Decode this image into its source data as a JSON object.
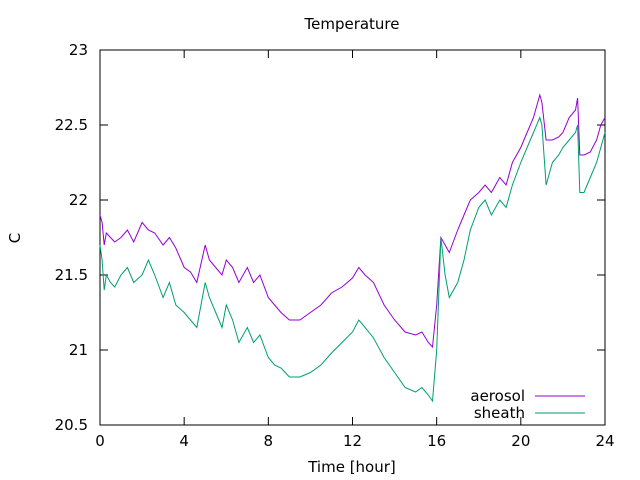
{
  "chart_data": {
    "type": "line",
    "title": "Temperature",
    "xlabel": "Time [hour]",
    "ylabel": "C",
    "xlim": [
      0,
      24
    ],
    "ylim": [
      20.5,
      23
    ],
    "xticks": [
      0,
      4,
      8,
      12,
      16,
      20,
      24
    ],
    "yticks": [
      20.5,
      21,
      21.5,
      22,
      22.5,
      23
    ],
    "ytick_labels": [
      "20.5",
      "21",
      "21.5",
      "22",
      "22.5",
      "23"
    ],
    "grid": false,
    "legend_position": "bottom-right",
    "series": [
      {
        "name": "aerosol",
        "color": "#9400d3",
        "x": [
          0,
          0.1,
          0.2,
          0.3,
          0.5,
          0.7,
          1,
          1.3,
          1.6,
          2,
          2.3,
          2.6,
          3,
          3.3,
          3.6,
          4,
          4.3,
          4.6,
          5,
          5.2,
          5.5,
          5.8,
          6,
          6.3,
          6.6,
          7,
          7.3,
          7.6,
          8,
          8.3,
          8.6,
          9,
          9.5,
          10,
          10.5,
          11,
          11.5,
          12,
          12.3,
          12.6,
          13,
          13.5,
          14,
          14.5,
          15,
          15.3,
          15.6,
          15.8,
          16,
          16.2,
          16.4,
          16.6,
          17,
          17.3,
          17.6,
          18,
          18.3,
          18.6,
          19,
          19.3,
          19.6,
          20,
          20.3,
          20.6,
          20.9,
          21,
          21.2,
          21.5,
          21.8,
          22,
          22.3,
          22.6,
          22.7,
          22.8,
          23,
          23.3,
          23.6,
          23.8,
          24
        ],
        "y": [
          21.9,
          21.85,
          21.7,
          21.78,
          21.75,
          21.72,
          21.75,
          21.8,
          21.72,
          21.85,
          21.8,
          21.78,
          21.7,
          21.75,
          21.68,
          21.55,
          21.52,
          21.45,
          21.7,
          21.6,
          21.55,
          21.5,
          21.6,
          21.55,
          21.45,
          21.55,
          21.45,
          21.5,
          21.35,
          21.3,
          21.25,
          21.2,
          21.2,
          21.25,
          21.3,
          21.38,
          21.42,
          21.48,
          21.55,
          21.5,
          21.45,
          21.3,
          21.2,
          21.12,
          21.1,
          21.12,
          21.05,
          21.02,
          21.3,
          21.75,
          21.7,
          21.65,
          21.8,
          21.9,
          22.0,
          22.05,
          22.1,
          22.05,
          22.15,
          22.1,
          22.25,
          22.35,
          22.45,
          22.55,
          22.7,
          22.65,
          22.4,
          22.4,
          22.42,
          22.45,
          22.55,
          22.6,
          22.68,
          22.3,
          22.3,
          22.32,
          22.4,
          22.5,
          22.55
        ]
      },
      {
        "name": "sheath",
        "color": "#009e73",
        "x": [
          0,
          0.1,
          0.2,
          0.3,
          0.5,
          0.7,
          1,
          1.3,
          1.6,
          2,
          2.3,
          2.6,
          3,
          3.3,
          3.6,
          4,
          4.3,
          4.6,
          5,
          5.2,
          5.5,
          5.8,
          6,
          6.3,
          6.6,
          7,
          7.3,
          7.6,
          8,
          8.3,
          8.6,
          9,
          9.5,
          10,
          10.5,
          11,
          11.5,
          12,
          12.3,
          12.6,
          13,
          13.5,
          14,
          14.5,
          15,
          15.3,
          15.6,
          15.8,
          16,
          16.2,
          16.4,
          16.6,
          17,
          17.3,
          17.6,
          18,
          18.3,
          18.6,
          19,
          19.3,
          19.6,
          20,
          20.3,
          20.6,
          20.9,
          21,
          21.2,
          21.5,
          21.8,
          22,
          22.3,
          22.6,
          22.7,
          22.8,
          23,
          23.3,
          23.6,
          23.8,
          24
        ],
        "y": [
          21.7,
          21.6,
          21.4,
          21.5,
          21.45,
          21.42,
          21.5,
          21.55,
          21.45,
          21.5,
          21.6,
          21.5,
          21.35,
          21.45,
          21.3,
          21.25,
          21.2,
          21.15,
          21.45,
          21.35,
          21.25,
          21.15,
          21.3,
          21.2,
          21.05,
          21.15,
          21.05,
          21.1,
          20.95,
          20.9,
          20.88,
          20.82,
          20.82,
          20.85,
          20.9,
          20.98,
          21.05,
          21.12,
          21.2,
          21.15,
          21.08,
          20.95,
          20.85,
          20.75,
          20.72,
          20.75,
          20.7,
          20.66,
          21.0,
          21.75,
          21.5,
          21.35,
          21.45,
          21.6,
          21.8,
          21.95,
          22.0,
          21.9,
          22.0,
          21.95,
          22.1,
          22.25,
          22.35,
          22.45,
          22.55,
          22.5,
          22.1,
          22.25,
          22.3,
          22.35,
          22.4,
          22.45,
          22.5,
          22.05,
          22.05,
          22.15,
          22.25,
          22.35,
          22.45
        ]
      }
    ]
  }
}
